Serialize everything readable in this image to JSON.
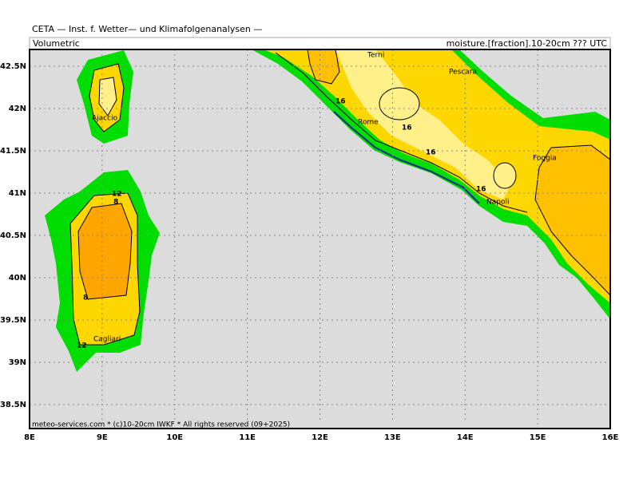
{
  "header": {
    "title": "CETA — Inst. f. Wetter— und Klimafolgenanalysen —",
    "left_label": "Volumetric",
    "right_label": "moisture.[fraction].10-20cm ??? UTC"
  },
  "map": {
    "lat_ticks": [
      {
        "value": 42.5,
        "label": "42.5N"
      },
      {
        "value": 42,
        "label": "42N"
      },
      {
        "value": 41.5,
        "label": "41.5N"
      },
      {
        "value": 41,
        "label": "41N"
      },
      {
        "value": 40.5,
        "label": "40.5N"
      },
      {
        "value": 40,
        "label": "40N"
      },
      {
        "value": 39.5,
        "label": "39.5N"
      },
      {
        "value": 39,
        "label": "39N"
      },
      {
        "value": 38.5,
        "label": "38.5N"
      }
    ],
    "lon_ticks": [
      {
        "value": 8,
        "label": "8E"
      },
      {
        "value": 9,
        "label": "9E"
      },
      {
        "value": 10,
        "label": "10E"
      },
      {
        "value": 11,
        "label": "11E"
      },
      {
        "value": 12,
        "label": "12E"
      },
      {
        "value": 13,
        "label": "13E"
      },
      {
        "value": 14,
        "label": "14E"
      },
      {
        "value": 15,
        "label": "15E"
      },
      {
        "value": 16,
        "label": "16E"
      }
    ],
    "cities": [
      "Terni",
      "Pescara",
      "Rome",
      "Foggia",
      "Napoli",
      "Ajaccio",
      "Cagliari"
    ],
    "contour_labels": [
      "16",
      "16",
      "16",
      "16",
      "12",
      "8",
      "8",
      "12"
    ]
  },
  "footer": "meteo-services.com * (c)10-20cm IWKF * All rights reserved (09+2025)"
}
